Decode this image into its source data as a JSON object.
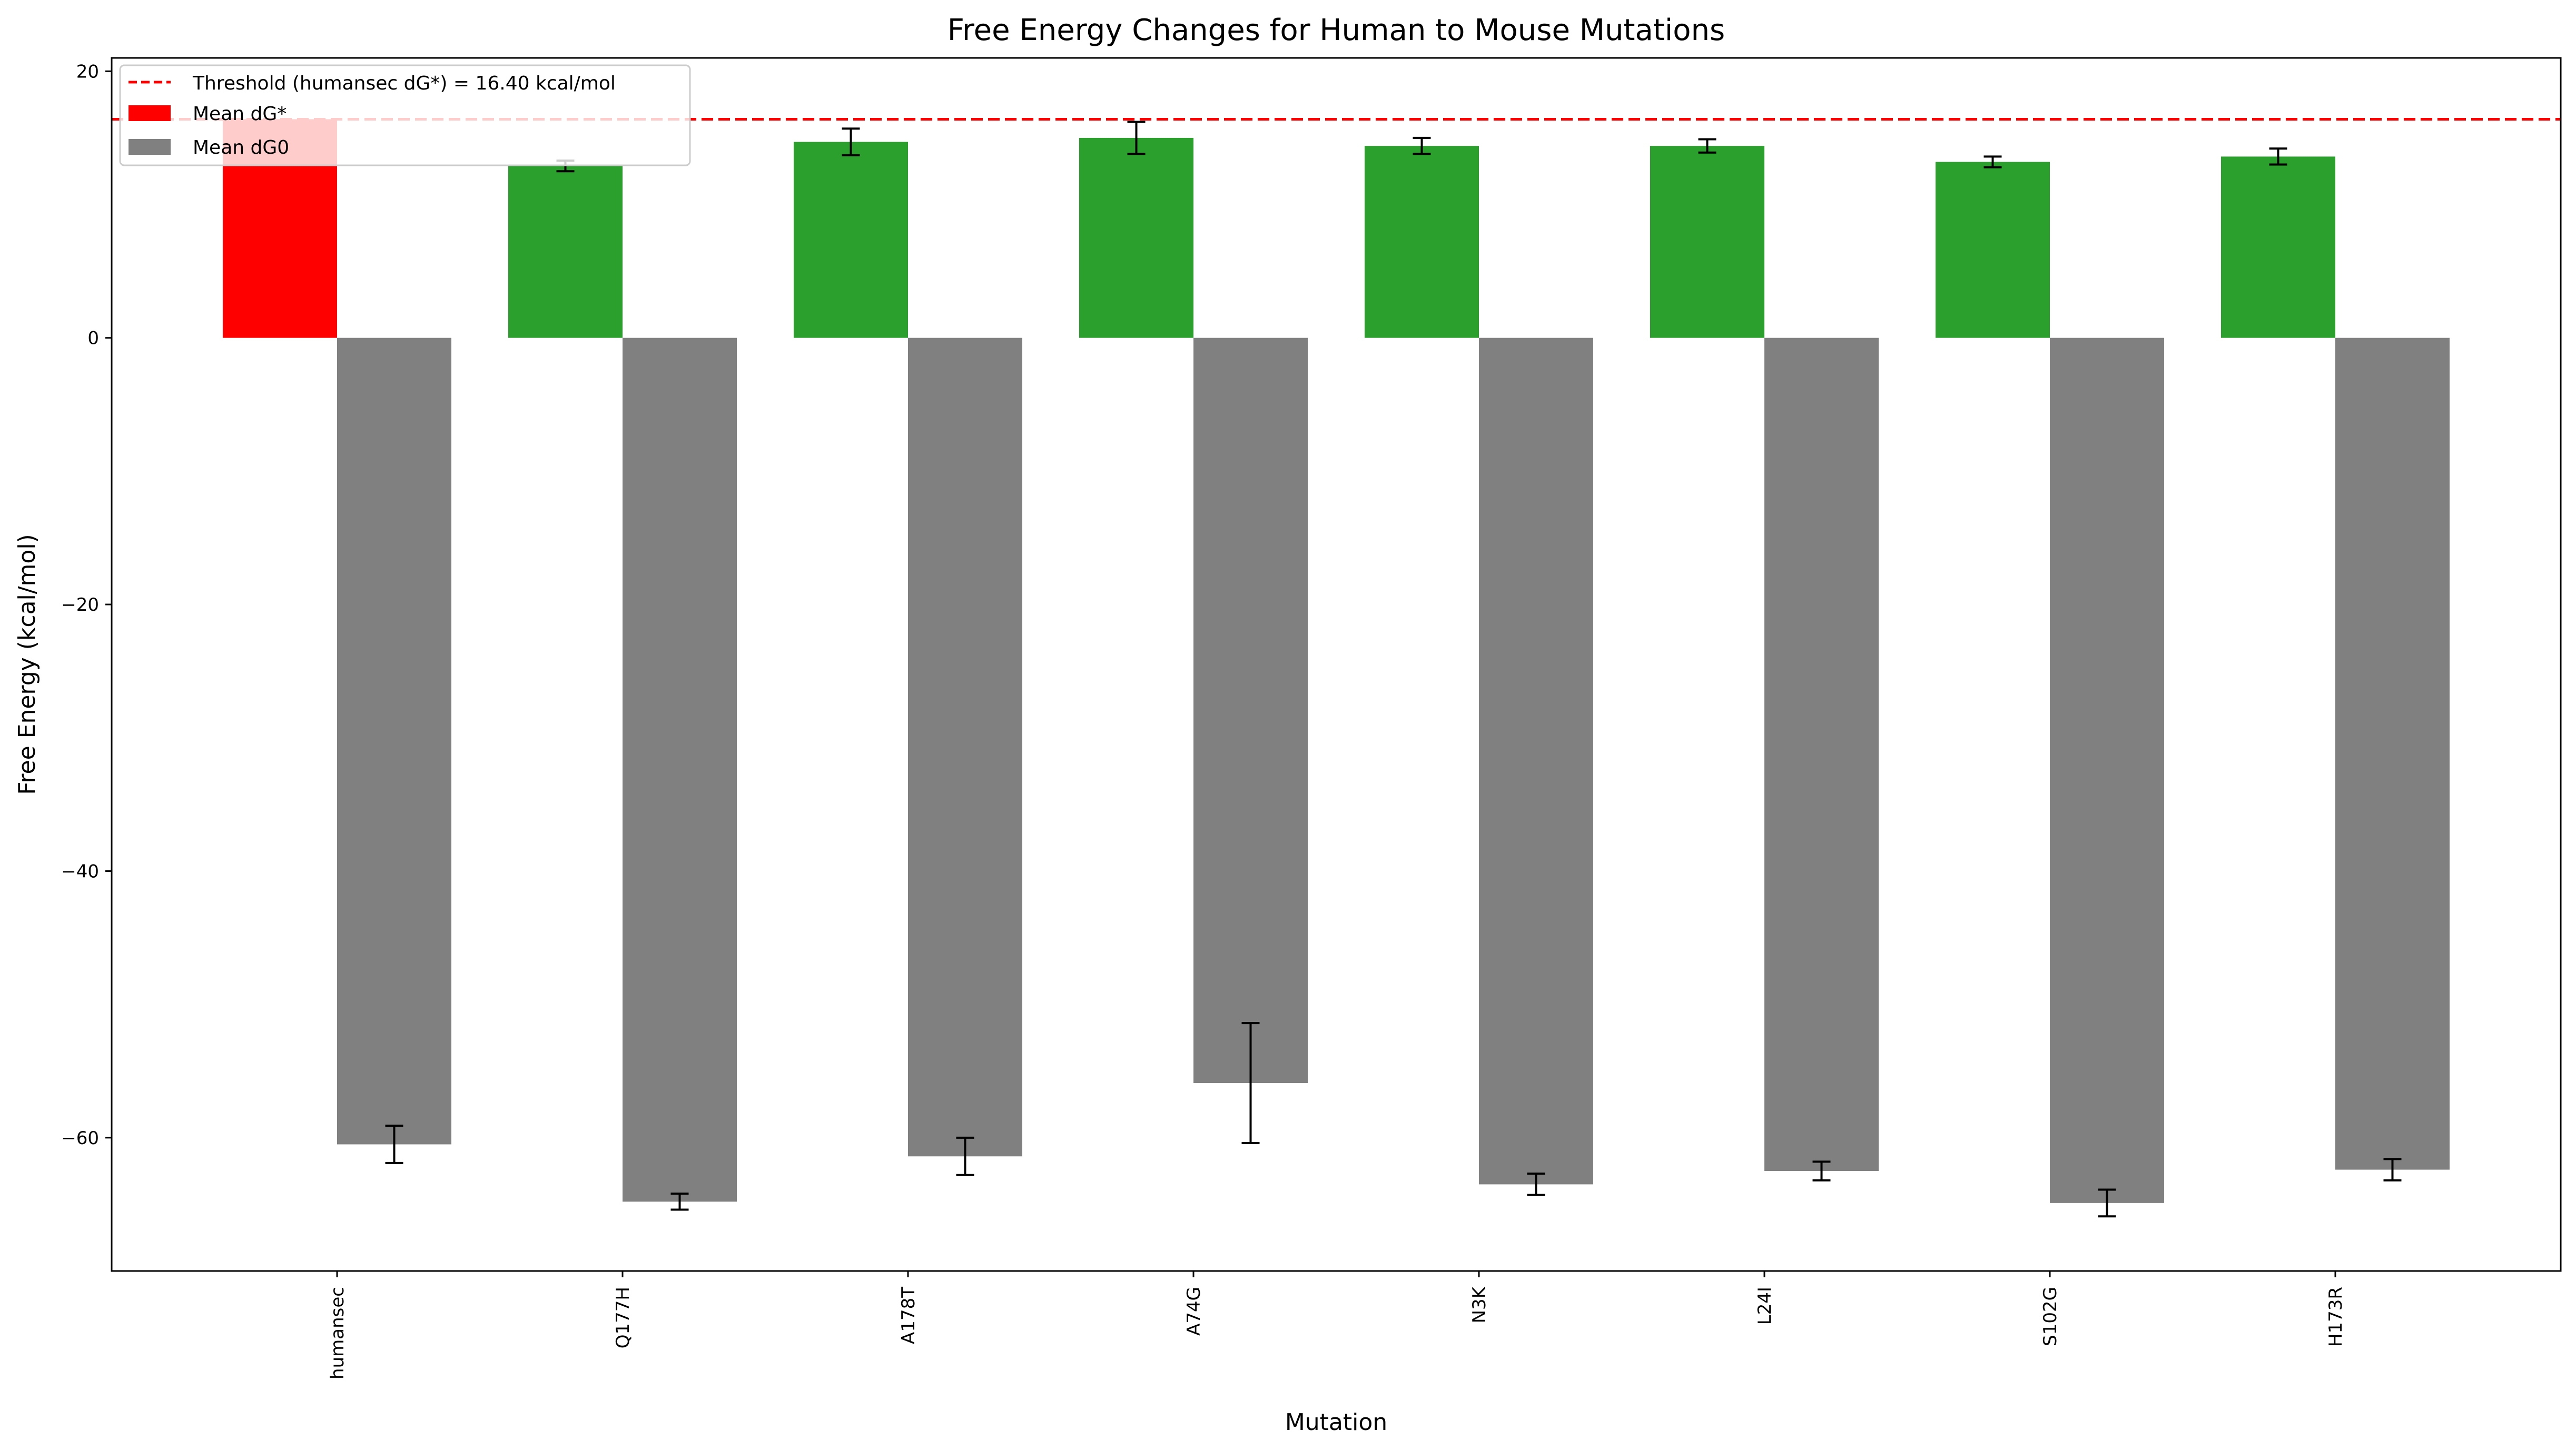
{
  "chart_data": {
    "type": "bar",
    "title": "Free Energy Changes for Human to Mouse Mutations",
    "xlabel": "Mutation",
    "ylabel": "Free Energy (kcal/mol)",
    "ylim": [
      -70,
      21
    ],
    "yticks": [
      20,
      0,
      -20,
      -40,
      -60
    ],
    "grid": false,
    "legend_position": "top-left",
    "categories": [
      "humansec",
      "Q177H",
      "A178T",
      "A74G",
      "N3K",
      "L24I",
      "S102G",
      "H173R"
    ],
    "threshold": {
      "value": 16.4,
      "label": "Threshold (humansec dG*) = 16.40 kcal/mol",
      "color": "#ff0000",
      "style": "dashed"
    },
    "series": [
      {
        "name": "Mean dG*",
        "legend_color": "#ff0000",
        "colors": [
          "#ff0000",
          "#2ca02c",
          "#2ca02c",
          "#2ca02c",
          "#2ca02c",
          "#2ca02c",
          "#2ca02c",
          "#2ca02c"
        ],
        "values": [
          16.4,
          12.9,
          14.7,
          15.0,
          14.4,
          14.4,
          13.2,
          13.6
        ],
        "errors": [
          0.0,
          0.4,
          1.0,
          1.2,
          0.6,
          0.5,
          0.4,
          0.6
        ]
      },
      {
        "name": "Mean dG0",
        "legend_color": "#808080",
        "colors": [
          "#808080",
          "#808080",
          "#808080",
          "#808080",
          "#808080",
          "#808080",
          "#808080",
          "#808080"
        ],
        "values": [
          -60.5,
          -64.8,
          -61.4,
          -55.9,
          -63.5,
          -62.5,
          -64.9,
          -62.4
        ],
        "errors": [
          1.4,
          0.6,
          1.4,
          4.5,
          0.8,
          0.7,
          1.0,
          0.8
        ]
      }
    ]
  }
}
